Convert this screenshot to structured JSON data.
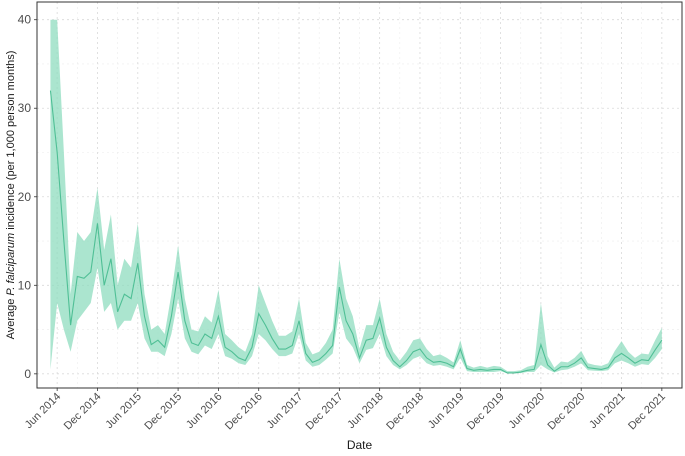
{
  "chart_data": {
    "type": "line",
    "title": "",
    "xlabel": "Date",
    "ylabel_prefix": "Average ",
    "ylabel_italic": "P. falciparum",
    "ylabel_suffix": " incidence (per 1,000 person months)",
    "x_ticks": [
      "Jun 2014",
      "Dec 2014",
      "Jun 2015",
      "Dec 2015",
      "Jun 2016",
      "Dec 2016",
      "Jun 2017",
      "Dec 2017",
      "Jun 2018",
      "Dec 2018",
      "Jun 2019",
      "Dec 2019",
      "Jun 2020",
      "Dec 2020",
      "Jun 2021",
      "Dec 2021"
    ],
    "y_ticks": [
      0,
      10,
      20,
      30,
      40
    ],
    "ylim": [
      -1.6,
      42
    ],
    "xlim": [
      "2014-03",
      "2022-03"
    ],
    "grid": true,
    "colors": {
      "line": "#4fbf95",
      "ribbon": "#8fdcbf",
      "grid": "#d9d9d9",
      "panel_border": "#333333",
      "text": "#1a1a1a"
    },
    "series": [
      {
        "x": [
          "2014-05",
          "2014-06",
          "2014-07",
          "2014-08",
          "2014-09",
          "2014-10",
          "2014-11",
          "2014-12",
          "2015-01",
          "2015-02",
          "2015-03",
          "2015-04",
          "2015-05",
          "2015-06",
          "2015-07",
          "2015-08",
          "2015-09",
          "2015-10",
          "2015-11",
          "2015-12",
          "2016-01",
          "2016-02",
          "2016-03",
          "2016-04",
          "2016-05",
          "2016-06",
          "2016-07",
          "2016-08",
          "2016-09",
          "2016-10",
          "2016-11",
          "2016-12",
          "2017-01",
          "2017-02",
          "2017-03",
          "2017-04",
          "2017-05",
          "2017-06",
          "2017-07",
          "2017-08",
          "2017-09",
          "2017-10",
          "2017-11",
          "2017-12",
          "2018-01",
          "2018-02",
          "2018-03",
          "2018-04",
          "2018-05",
          "2018-06",
          "2018-07",
          "2018-08",
          "2018-09",
          "2018-10",
          "2018-11",
          "2018-12",
          "2019-01",
          "2019-02",
          "2019-03",
          "2019-04",
          "2019-05",
          "2019-06",
          "2019-07",
          "2019-08",
          "2019-09",
          "2019-10",
          "2019-11",
          "2019-12",
          "2020-01",
          "2020-02",
          "2020-03",
          "2020-04",
          "2020-05",
          "2020-06",
          "2020-07",
          "2020-08",
          "2020-09",
          "2020-10",
          "2020-11",
          "2020-12",
          "2021-01",
          "2021-02",
          "2021-03",
          "2021-04",
          "2021-05",
          "2021-06",
          "2021-07",
          "2021-08",
          "2021-09",
          "2021-10",
          "2021-11",
          "2021-12"
        ],
        "values": [
          32,
          25,
          15,
          5.5,
          11,
          10.8,
          11.5,
          17,
          10,
          13,
          7,
          9,
          8.5,
          12.5,
          6.5,
          3.3,
          3.8,
          3.0,
          6.5,
          11.5,
          6,
          3.5,
          3.2,
          4.5,
          4.0,
          6.5,
          3.0,
          2.5,
          1.8,
          1.5,
          3.0,
          6.8,
          5.5,
          4.0,
          2.8,
          2.8,
          3.2,
          6.0,
          2.3,
          1.3,
          1.6,
          2.3,
          3.2,
          9.8,
          6.0,
          4.5,
          1.8,
          3.8,
          4.0,
          6.3,
          3.0,
          1.5,
          0.8,
          1.5,
          2.5,
          2.8,
          1.8,
          1.3,
          1.4,
          1.2,
          0.8,
          2.8,
          0.6,
          0.4,
          0.5,
          0.4,
          0.5,
          0.5,
          0.1,
          0.1,
          0.2,
          0.4,
          0.5,
          3.3,
          1.0,
          0.3,
          0.8,
          0.8,
          1.2,
          1.8,
          0.7,
          0.6,
          0.5,
          0.7,
          1.8,
          2.3,
          1.8,
          1.2,
          1.6,
          1.5,
          2.7,
          3.8
        ],
        "lower": [
          0.5,
          8,
          5,
          2.5,
          6,
          7,
          8,
          12,
          7,
          8,
          5,
          6,
          6,
          8,
          4,
          2.5,
          2.5,
          2,
          4.5,
          8.5,
          4,
          2.5,
          2.2,
          3.2,
          2.8,
          4.5,
          2,
          1.7,
          1.2,
          1,
          2,
          4.5,
          3.8,
          2.8,
          2,
          2,
          2.3,
          4.5,
          1.5,
          0.8,
          1,
          1.6,
          2.3,
          7,
          4,
          3,
          1.2,
          2.7,
          2.9,
          4.5,
          2,
          1,
          0.5,
          1,
          1.7,
          2,
          1.2,
          0.9,
          1,
          0.8,
          0.5,
          1.8,
          0.3,
          0.2,
          0.2,
          0.2,
          0.2,
          0.3,
          0.05,
          0.05,
          0.1,
          0.2,
          0.2,
          1,
          0.5,
          0.15,
          0.4,
          0.5,
          0.8,
          1.2,
          0.4,
          0.35,
          0.3,
          0.4,
          1.2,
          1.5,
          1.2,
          0.8,
          1.1,
          1,
          1.8,
          2.8
        ],
        "upper": [
          40,
          40,
          25,
          9,
          16,
          15,
          16,
          21,
          14,
          18,
          10,
          13,
          12,
          17,
          9,
          5,
          5.5,
          4.5,
          9,
          14.5,
          8.5,
          5,
          4.8,
          6.5,
          5.8,
          9.5,
          4.5,
          3.8,
          3,
          2.5,
          4.5,
          10,
          8,
          6,
          4.3,
          4.3,
          4.8,
          8.5,
          3.5,
          2.2,
          2.5,
          3.5,
          5,
          13,
          8.5,
          6.5,
          2.8,
          5.5,
          5.5,
          8.5,
          4.5,
          2.5,
          1.5,
          2.5,
          3.8,
          4,
          2.8,
          2,
          2.2,
          1.8,
          1.3,
          3.8,
          1,
          0.7,
          0.9,
          0.7,
          0.9,
          0.8,
          0.3,
          0.3,
          0.4,
          0.8,
          1,
          8,
          2,
          0.7,
          1.4,
          1.3,
          1.8,
          2.6,
          1.2,
          1,
          0.9,
          1.2,
          2.6,
          3.7,
          2.5,
          1.8,
          2.3,
          2.2,
          3.8,
          5.2
        ]
      }
    ]
  }
}
